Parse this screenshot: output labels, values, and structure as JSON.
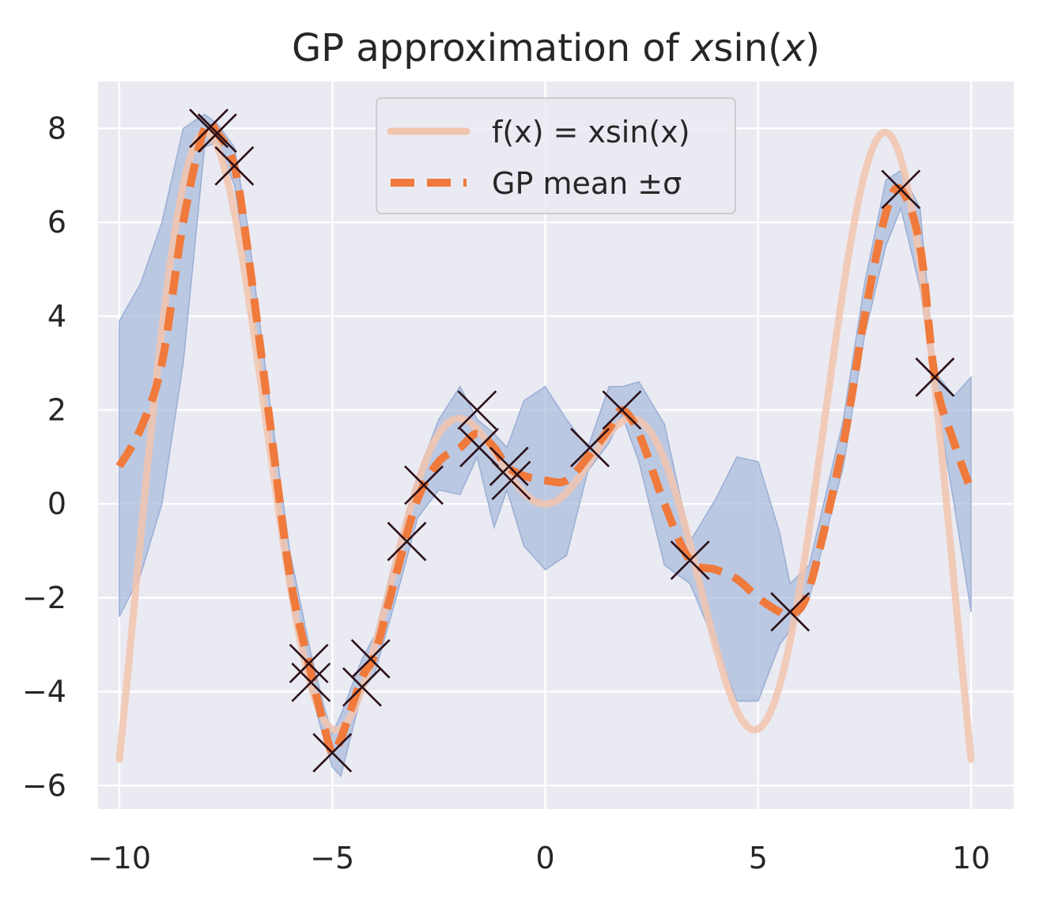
{
  "chart_data": {
    "type": "line",
    "title": "GP approximation of xsin(x)",
    "title_parts": [
      "GP approximation of ",
      "x",
      "sin(",
      "x",
      ")"
    ],
    "xlabel": "",
    "ylabel": "",
    "xlim": [
      -10.5,
      11.0
    ],
    "ylim": [
      -6.5,
      9.0
    ],
    "xticks": [
      -10,
      -5,
      0,
      5,
      10
    ],
    "yticks": [
      -6,
      -4,
      -2,
      0,
      2,
      4,
      6,
      8
    ],
    "xtick_labels": [
      "−10",
      "−5",
      "0",
      "5",
      "10"
    ],
    "ytick_labels": [
      "−6",
      "−4",
      "−2",
      "0",
      "2",
      "4",
      "6",
      "8"
    ],
    "grid": true,
    "legend_position": "top-center",
    "legend": [
      {
        "label": "f(x) = xsin(x)",
        "style": "solid",
        "color": "#f2c4ae"
      },
      {
        "label": "GP mean ±σ",
        "style": "dashed",
        "color": "#ef7a3c"
      }
    ],
    "colors": {
      "background": "#eaeaf2",
      "grid": "#ffffff",
      "true_function": "#f2c4ae",
      "gp_mean": "#ef7a3c",
      "band_fill": "#a9bbdb",
      "band_edge": "#9aaed6",
      "markers": "#2a0f17"
    },
    "observations": {
      "x": [
        -7.9,
        -7.7,
        -7.3,
        -5.55,
        -5.5,
        -5.0,
        -4.3,
        -4.1,
        -3.25,
        -2.85,
        -1.6,
        -1.55,
        -0.85,
        -0.8,
        1.05,
        1.8,
        3.4,
        5.75,
        8.35,
        9.15
      ],
      "y": [
        8.0,
        7.9,
        7.2,
        -3.4,
        -3.8,
        -5.3,
        -3.9,
        -3.3,
        -0.8,
        0.4,
        2.0,
        1.2,
        0.8,
        0.5,
        1.2,
        2.0,
        -1.2,
        -2.3,
        6.7,
        2.7
      ]
    },
    "series": [
      {
        "name": "f(x) = xsin(x)",
        "function": "x*sin(x)"
      },
      {
        "name": "GP mean ±σ",
        "x": [
          -10.0,
          -9.5,
          -9.0,
          -8.5,
          -8.0,
          -7.7,
          -7.3,
          -7.0,
          -6.5,
          -6.0,
          -5.5,
          -5.2,
          -5.0,
          -4.8,
          -4.3,
          -4.0,
          -3.5,
          -3.0,
          -2.5,
          -2.0,
          -1.6,
          -1.2,
          -0.9,
          -0.5,
          0.0,
          0.5,
          1.0,
          1.5,
          1.8,
          2.2,
          2.8,
          3.4,
          4.0,
          4.5,
          5.0,
          5.5,
          5.75,
          6.2,
          7.0,
          7.5,
          8.0,
          8.35,
          8.8,
          9.15,
          9.6,
          10.0
        ],
        "mean": [
          0.8,
          1.6,
          3.0,
          6.0,
          8.0,
          7.9,
          7.2,
          5.5,
          2.0,
          -1.5,
          -3.6,
          -4.7,
          -5.3,
          -5.0,
          -3.7,
          -3.2,
          -1.5,
          0.1,
          0.9,
          1.2,
          1.5,
          1.2,
          0.8,
          0.6,
          0.5,
          0.5,
          1.0,
          1.6,
          2.0,
          1.5,
          0.0,
          -1.2,
          -1.4,
          -1.6,
          -2.0,
          -2.3,
          -2.35,
          -1.8,
          1.3,
          4.0,
          6.2,
          6.7,
          5.5,
          2.7,
          1.3,
          0.3
        ],
        "lower": [
          -2.4,
          -1.5,
          0.0,
          3.0,
          7.6,
          7.7,
          6.8,
          5.0,
          1.6,
          -2.0,
          -4.0,
          -5.0,
          -5.6,
          -5.8,
          -4.0,
          -3.6,
          -2.0,
          -0.3,
          0.3,
          0.2,
          1.0,
          -0.5,
          0.3,
          -0.9,
          -1.4,
          -1.1,
          0.7,
          1.3,
          1.9,
          0.9,
          -1.3,
          -1.7,
          -3.0,
          -4.2,
          -4.2,
          -3.0,
          -2.7,
          -2.0,
          0.8,
          3.6,
          5.5,
          6.3,
          4.6,
          2.4,
          0.0,
          -2.3
        ],
        "upper": [
          3.9,
          4.7,
          6.0,
          8.0,
          8.3,
          8.1,
          7.6,
          6.0,
          2.4,
          -1.0,
          -3.2,
          -4.3,
          -4.9,
          -4.5,
          -3.3,
          -2.8,
          -1.0,
          0.6,
          1.8,
          2.5,
          1.8,
          1.5,
          1.2,
          2.2,
          2.5,
          1.8,
          1.2,
          2.5,
          2.5,
          2.6,
          1.7,
          -0.8,
          0.1,
          1.0,
          0.9,
          -0.6,
          -1.7,
          -1.3,
          1.8,
          4.7,
          6.9,
          7.1,
          6.3,
          2.8,
          2.3,
          2.7
        ]
      }
    ]
  }
}
